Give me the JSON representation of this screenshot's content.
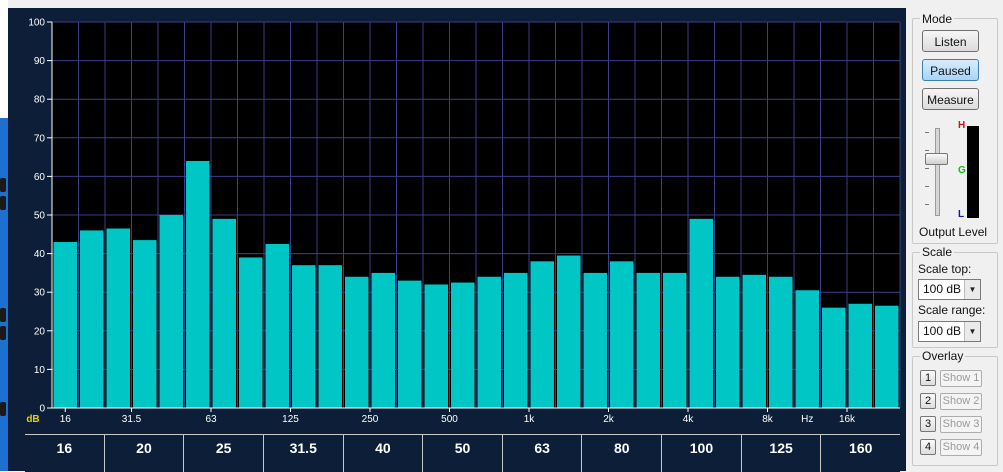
{
  "chart_data": {
    "type": "bar",
    "ylim": [
      0,
      100
    ],
    "y_ticks": [
      "0",
      "10",
      "20",
      "30",
      "40",
      "50",
      "60",
      "70",
      "80",
      "90",
      "100"
    ],
    "y_unit": "dB",
    "x_unit": "Hz",
    "x_ticks": [
      {
        "label": "16",
        "band": 0.5
      },
      {
        "label": "31.5",
        "band": 3
      },
      {
        "label": "63",
        "band": 6
      },
      {
        "label": "125",
        "band": 9
      },
      {
        "label": "250",
        "band": 12
      },
      {
        "label": "500",
        "band": 15
      },
      {
        "label": "1k",
        "band": 18
      },
      {
        "label": "2k",
        "band": 21
      },
      {
        "label": "4k",
        "band": 24
      },
      {
        "label": "8k",
        "band": 27
      },
      {
        "label": "16k",
        "band": 30
      }
    ],
    "hz_label_band": 28.5,
    "values": [
      43,
      46,
      46.5,
      43.5,
      50,
      64,
      49,
      39,
      42.5,
      37,
      37,
      34,
      35,
      33,
      32,
      32.5,
      34,
      35,
      38,
      39.5,
      35,
      38,
      35,
      35,
      49,
      34,
      34.5,
      34,
      30.5,
      26,
      27,
      26.5
    ],
    "grid": true,
    "bar_color": "#00c6c6",
    "grid_color": "#3d3d8a",
    "background": "#000000"
  },
  "band_table": [
    "16",
    "20",
    "25",
    "31.5",
    "40",
    "50",
    "63",
    "80",
    "100",
    "125",
    "160"
  ],
  "panel": {
    "mode_title": "Mode",
    "listen": "Listen",
    "paused": "Paused",
    "measure": "Measure",
    "output_level": "Output Level",
    "meter_h": "H",
    "meter_g": "G",
    "meter_l": "L",
    "scale_title": "Scale",
    "scale_top_label": "Scale top:",
    "scale_top_value": "100 dB",
    "scale_range_label": "Scale range:",
    "scale_range_value": "100 dB",
    "overlay_title": "Overlay",
    "overlays": [
      {
        "num": "1",
        "label": "Show 1"
      },
      {
        "num": "2",
        "label": "Show 2"
      },
      {
        "num": "3",
        "label": "Show 3"
      },
      {
        "num": "4",
        "label": "Show 4"
      }
    ]
  },
  "colors": {
    "panel_bg": "#0d1f38",
    "axis_text": "#ffffff",
    "db_label": "#e6d200"
  }
}
